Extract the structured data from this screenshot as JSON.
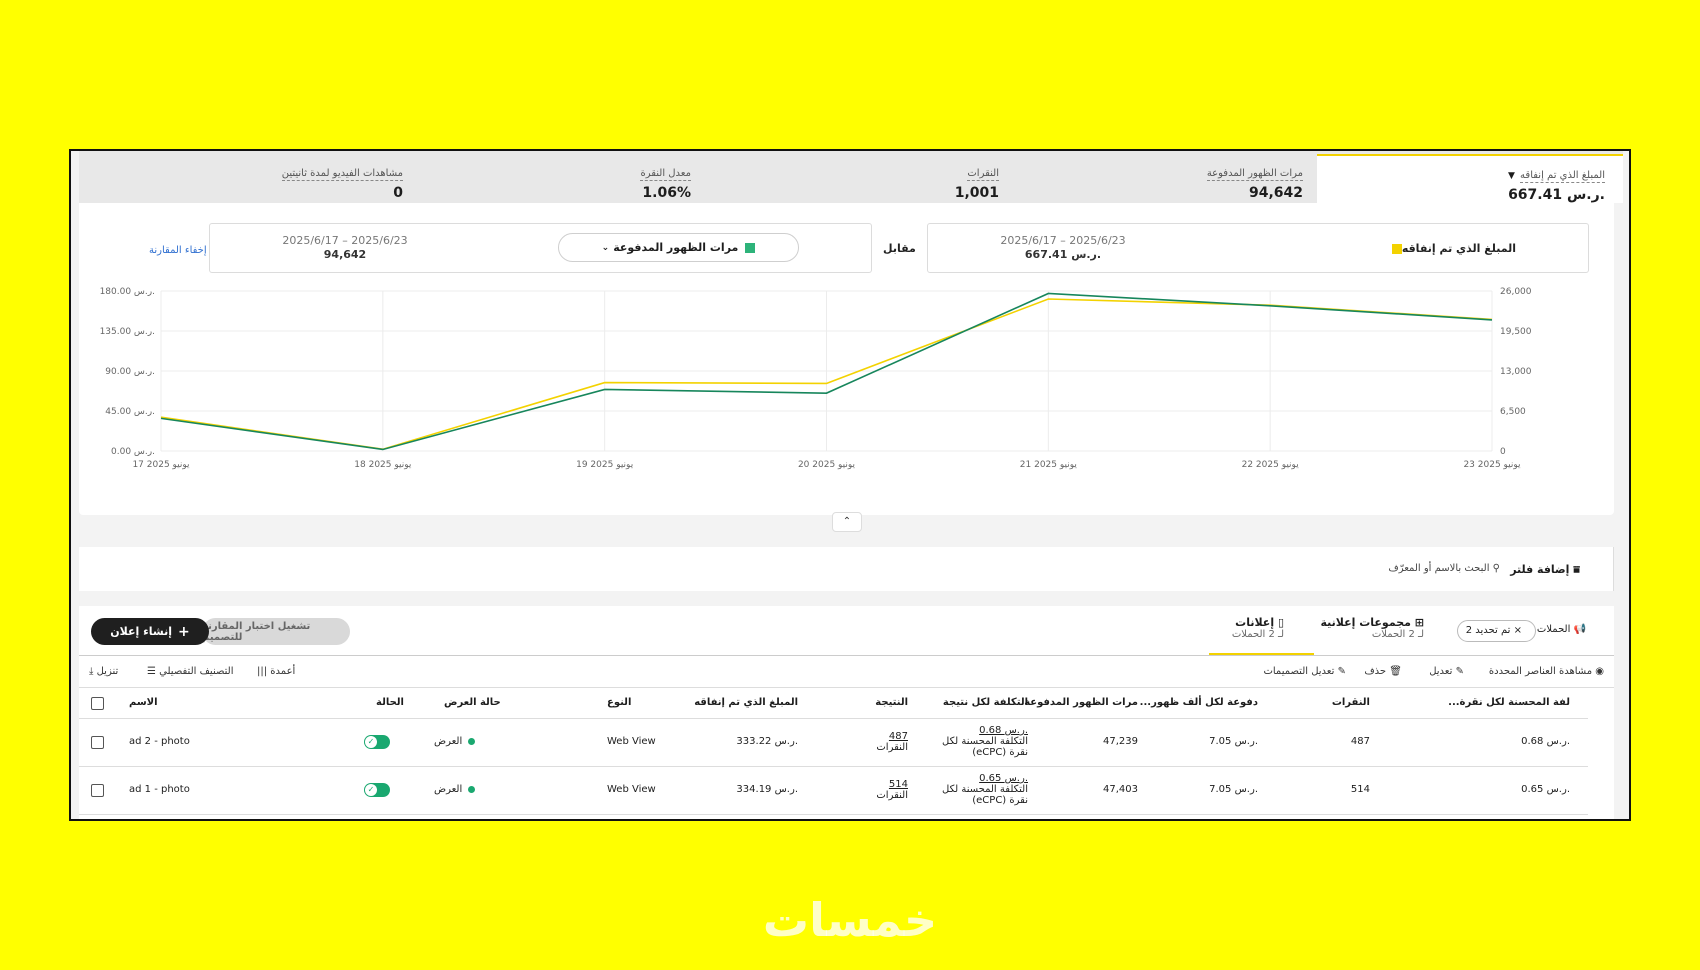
{
  "metrics": [
    {
      "label": "المبلغ الذي تم إنفاقه",
      "value": "667.41 ر.س.",
      "selected": true
    },
    {
      "label": "مرات الظهور المدفوعة",
      "value": "94,642"
    },
    {
      "label": "النقرات",
      "value": "1,001"
    },
    {
      "label": "معدل النقرة",
      "value": "1.06%"
    },
    {
      "label": "مشاهدات الفيديو لمدة ثانيتين",
      "value": "0"
    }
  ],
  "comparison": {
    "primary": {
      "metric": "المبلغ الذي تم إنفاقه",
      "range": "2025/6/17 – 2025/6/23",
      "value": "667.41 ر.س.",
      "color": "#f3d200"
    },
    "vs_label": "مقابل",
    "secondary": {
      "metric": "مرات الظهور المدفوعة",
      "range": "2025/6/17 – 2025/6/23",
      "value": "94,642",
      "color": "#2db37a"
    },
    "hide_link": "إخفاء المقارنة"
  },
  "chart_data": {
    "type": "line",
    "x": [
      "17 يونيو 2025",
      "18 يونيو 2025",
      "19 يونيو 2025",
      "20 يونيو 2025",
      "21 يونيو 2025",
      "22 يونيو 2025",
      "23 يونيو 2025"
    ],
    "left_axis": {
      "ticks": [
        "0.00 ر.س.",
        "45.00 ر.س.",
        "90.00 ر.س.",
        "135.00 ر.س.",
        "180.00 ر.س."
      ],
      "ylim": [
        0,
        180
      ]
    },
    "right_axis": {
      "ticks": [
        "0",
        "6,500",
        "13,000",
        "19,500",
        "26,000"
      ],
      "ylim": [
        0,
        26000
      ]
    },
    "series": [
      {
        "name": "المبلغ الذي تم إنفاقه",
        "axis": "left",
        "color": "#f3d200",
        "values": [
          38,
          2,
          77,
          76,
          171,
          164,
          148
        ]
      },
      {
        "name": "مرات الظهور المدفوعة",
        "axis": "right",
        "color": "#17865c",
        "values": [
          5300,
          250,
          10000,
          9400,
          25600,
          23600,
          21300
        ]
      }
    ],
    "grid": true
  },
  "filter": {
    "add_filter": "إضافة فلتر",
    "search_placeholder": "البحث بالاسم أو المعرّف"
  },
  "tabs": {
    "campaigns": "الحملات",
    "selected_chip": "تم تحديد 2",
    "ad_groups": {
      "title": "مجموعات إعلانية",
      "sub": "لـ 2 الحملات"
    },
    "ads": {
      "title": "إعلانات",
      "sub": "لـ 2 الحملات"
    },
    "test_button": "تشغيل اختبار المقارنة للتصميم",
    "create_button": "إنشاء إعلان"
  },
  "toolbar": {
    "view_selected": "مشاهدة العناصر المحددة",
    "edit": "تعديل",
    "delete": "حذف",
    "edit_creatives": "تعديل التصميمات",
    "columns": "أعمدة",
    "breakdown": "التصنيف التفصيلي",
    "download": "تنزيل"
  },
  "table": {
    "headers": {
      "name": "الاسم",
      "status": "الحالة",
      "delivery": "حالة العرض",
      "type": "النوع",
      "spent": "المبلغ الذي تم إنفاقه",
      "result": "النتيجة",
      "cost_per_result": "التكلفة لكل نتيجة",
      "impressions": "مرات الظهور المدفوعة",
      "cpm": "...دفوعة لكل ألف ظهور",
      "clicks": "النقرات",
      "ecpc": "...لفة المحسنة لكل نقرة"
    },
    "rows": [
      {
        "name": "ad 2 - photo",
        "delivery": "العرض",
        "type": "Web View",
        "spent": "333.22 ر.س.",
        "result": "487",
        "result_unit": "النقرات",
        "cpr": "0.68 ر.س.",
        "cpr_line1": "التكلفة المحسنة لكل",
        "cpr_line2": "(eCPC) نقرة",
        "impressions": "47,239",
        "cpm": "7.05 ر.س.",
        "clicks": "487",
        "ecpc": "0.68 ر.س."
      },
      {
        "name": "ad 1 - photo",
        "delivery": "العرض",
        "type": "Web View",
        "spent": "334.19 ر.س.",
        "result": "514",
        "result_unit": "النقرات",
        "cpr": "0.65 ر.س.",
        "cpr_line1": "التكلفة المحسنة لكل",
        "cpr_line2": "(eCPC) نقرة",
        "impressions": "47,403",
        "cpm": "7.05 ر.س.",
        "clicks": "514",
        "ecpc": "0.65 ر.س."
      }
    ]
  },
  "watermark": "خمسات"
}
